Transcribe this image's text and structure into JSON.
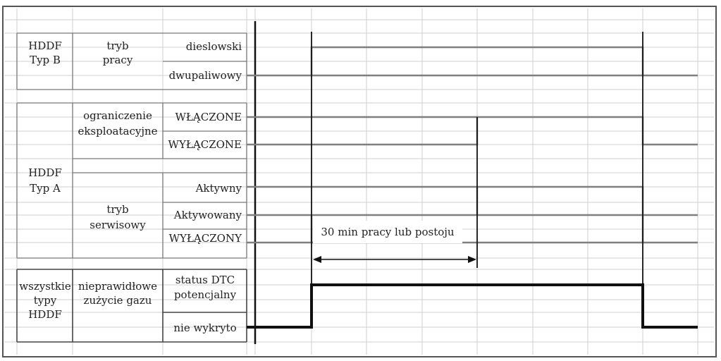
{
  "groups": {
    "hddf_b": [
      "HDDF",
      "Typ B"
    ],
    "tryb_pracy": [
      "tryb",
      "pracy"
    ],
    "hddf_a": [
      "HDDF",
      "Typ A"
    ],
    "ograniczenie": [
      "ograniczenie",
      "eksploatacyjne"
    ],
    "tryb_serwisowy": [
      "tryb",
      "serwisowy"
    ],
    "wszystkie": [
      "wszystkie",
      "typy",
      "HDDF"
    ],
    "nieprawidlowe": [
      "nieprawidłowe",
      "zużycie gazu"
    ]
  },
  "states": {
    "dieslowski": "dieslowski",
    "dwupaliwowy": "dwupaliwowy",
    "wlaczone": "WŁĄCZONE",
    "wylaczone": "WYŁĄCZONE",
    "aktywny": "Aktywny",
    "aktywowany": "Aktywowany",
    "wylaczony": "WYŁĄCZONY",
    "status_dtc": [
      "status DTC",
      "potencjalny"
    ],
    "nie_wykryto": "nie wykryto"
  },
  "annotation": "30 min pracy lub postoju",
  "colors": {
    "signal": "#7f7f7f",
    "dtc_signal": "#111111",
    "grid": "#cfcfcf"
  }
}
